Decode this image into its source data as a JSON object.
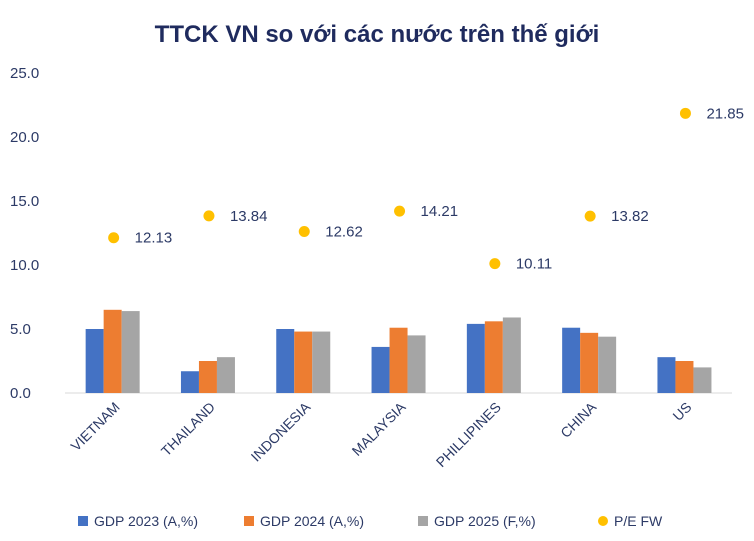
{
  "chart_data": {
    "type": "bar",
    "title": "TTCK VN so với các nước trên thế giới",
    "categories": [
      "VIETNAM",
      "THAILAND",
      "INDONESIA",
      "MALAYSIA",
      "PHILLIPINES",
      "CHINA",
      "US"
    ],
    "ylim": [
      0,
      25
    ],
    "yticks": [
      "0.0",
      "5.0",
      "10.0",
      "15.0",
      "20.0",
      "25.0"
    ],
    "grid": false,
    "legend_position": "bottom",
    "series": [
      {
        "name": "GDP 2023 (A,%)",
        "type": "bar",
        "color": "#4472C4",
        "values": [
          5.0,
          1.7,
          5.0,
          3.6,
          5.4,
          5.1,
          2.8
        ]
      },
      {
        "name": "GDP 2024 (A,%)",
        "type": "bar",
        "color": "#ED7D31",
        "values": [
          6.5,
          2.5,
          4.8,
          5.1,
          5.6,
          4.7,
          2.5
        ]
      },
      {
        "name": "GDP 2025 (F,%)",
        "type": "bar",
        "color": "#A5A5A5",
        "values": [
          6.4,
          2.8,
          4.8,
          4.5,
          5.9,
          4.4,
          2.0
        ]
      },
      {
        "name": "P/E FW",
        "type": "scatter",
        "color": "#FFC000",
        "values": [
          12.13,
          13.84,
          12.62,
          14.21,
          10.11,
          13.82,
          21.85
        ],
        "labels": [
          "12.13",
          "13.84",
          "12.62",
          "14.21",
          "10.11",
          "13.82",
          "21.85"
        ]
      }
    ]
  }
}
